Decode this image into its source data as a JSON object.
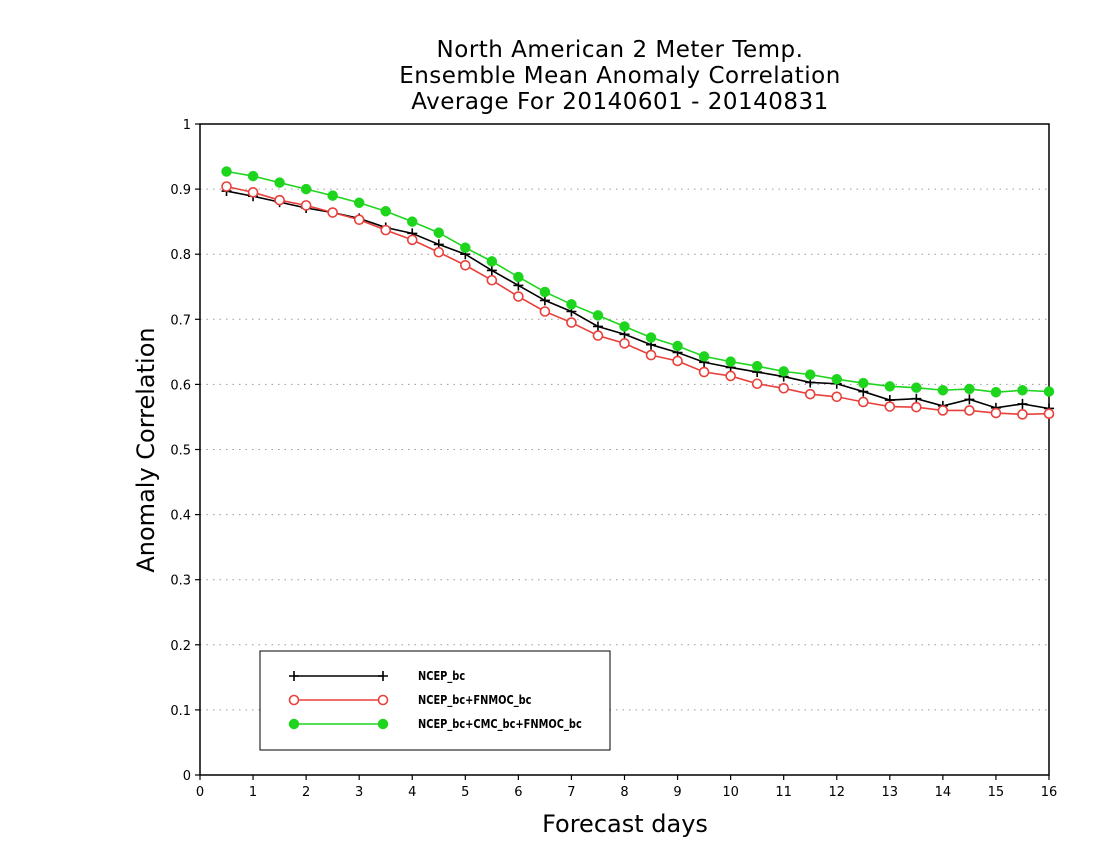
{
  "chart_data": {
    "type": "line",
    "title": [
      "North American 2 Meter Temp.",
      "Ensemble Mean Anomaly Correlation",
      "Average For 20140601 - 20140831"
    ],
    "xlabel": "Forecast days",
    "ylabel": "Anomaly Correlation",
    "xlim": [
      0,
      16
    ],
    "ylim": [
      0,
      1
    ],
    "xticks": [
      "0",
      "1",
      "2",
      "3",
      "4",
      "5",
      "6",
      "7",
      "8",
      "9",
      "10",
      "11",
      "12",
      "13",
      "14",
      "15",
      "16"
    ],
    "yticks": [
      "0",
      "0.1",
      "0.2",
      "0.3",
      "0.4",
      "0.5",
      "0.6",
      "0.7",
      "0.8",
      "0.9",
      "1"
    ],
    "grid": true,
    "legend_position": "bottom-left",
    "x": [
      0.5,
      1,
      1.5,
      2,
      2.5,
      3,
      3.5,
      4,
      4.5,
      5,
      5.5,
      6,
      6.5,
      7,
      7.5,
      8,
      8.5,
      9,
      9.5,
      10,
      10.5,
      11,
      11.5,
      12,
      12.5,
      13,
      13.5,
      14,
      14.5,
      15,
      15.5,
      16
    ],
    "series": [
      {
        "name": "NCEP_bc",
        "color": "#000000",
        "marker": "plus",
        "values": [
          0.897,
          0.889,
          0.88,
          0.871,
          0.864,
          0.855,
          0.841,
          0.832,
          0.815,
          0.8,
          0.775,
          0.752,
          0.729,
          0.712,
          0.689,
          0.677,
          0.661,
          0.649,
          0.634,
          0.626,
          0.619,
          0.612,
          0.603,
          0.601,
          0.589,
          0.576,
          0.578,
          0.567,
          0.577,
          0.564,
          0.57,
          0.563
        ]
      },
      {
        "name": "NCEP_bc+FNMOC_bc",
        "color": "#e8413c",
        "marker": "open-circle",
        "values": [
          0.904,
          0.895,
          0.883,
          0.875,
          0.864,
          0.853,
          0.837,
          0.822,
          0.803,
          0.783,
          0.76,
          0.735,
          0.712,
          0.695,
          0.675,
          0.663,
          0.645,
          0.636,
          0.619,
          0.613,
          0.601,
          0.594,
          0.585,
          0.581,
          0.573,
          0.566,
          0.565,
          0.56,
          0.56,
          0.556,
          0.554,
          0.555
        ]
      },
      {
        "name": "NCEP_bc+CMC_bc+FNMOC_bc",
        "color": "#1ed51e",
        "marker": "filled-circle",
        "values": [
          0.927,
          0.92,
          0.91,
          0.9,
          0.89,
          0.879,
          0.866,
          0.85,
          0.833,
          0.81,
          0.789,
          0.765,
          0.742,
          0.723,
          0.706,
          0.689,
          0.672,
          0.659,
          0.643,
          0.635,
          0.628,
          0.62,
          0.615,
          0.608,
          0.602,
          0.597,
          0.595,
          0.591,
          0.593,
          0.588,
          0.591,
          0.589
        ]
      }
    ]
  }
}
